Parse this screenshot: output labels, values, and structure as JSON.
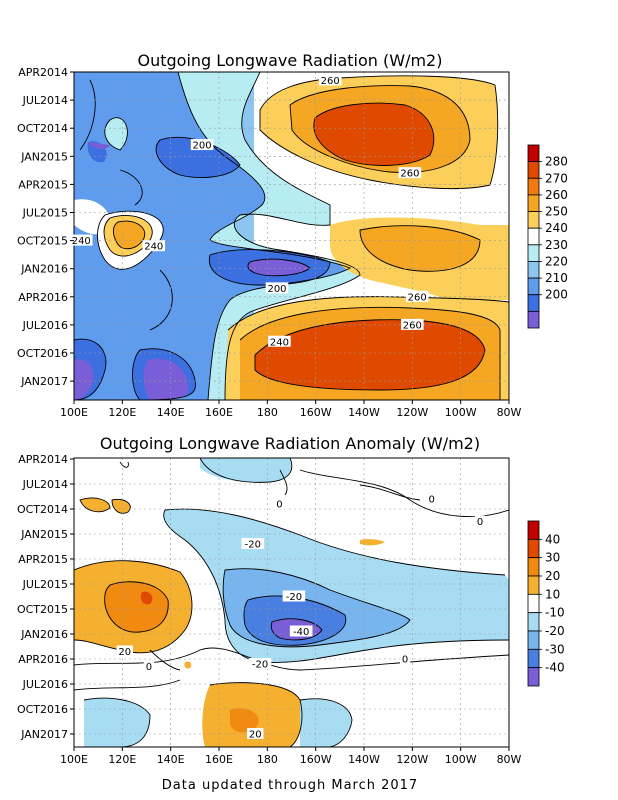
{
  "chart_data": [
    {
      "type": "heatmap",
      "title": "Outgoing Longwave Radiation (W/m2)",
      "x_ticks": [
        "100E",
        "120E",
        "140E",
        "160E",
        "180",
        "160W",
        "140W",
        "120W",
        "100W",
        "80W"
      ],
      "y_ticks": [
        "APR2014",
        "JUL2014",
        "OCT2014",
        "JAN2015",
        "APR2015",
        "JUL2015",
        "OCT2015",
        "JAN2016",
        "APR2016",
        "JUL2016",
        "OCT2016",
        "JAN2017"
      ],
      "contour_labels": [
        {
          "text": "260",
          "lon": -154,
          "t": 0.3
        },
        {
          "text": "200",
          "lon": 153,
          "t": 2.6
        },
        {
          "text": "260",
          "lon": -121,
          "t": 3.6
        },
        {
          "text": "240",
          "lon": 103,
          "t": 6.0
        },
        {
          "text": "240",
          "lon": 133,
          "t": 6.2
        },
        {
          "text": "200",
          "lon": -176,
          "t": 7.7
        },
        {
          "text": "260",
          "lon": -118,
          "t": 8.0
        },
        {
          "text": "260",
          "lon": -120,
          "t": 9.0
        },
        {
          "text": "240",
          "lon": -175,
          "t": 9.6
        }
      ],
      "colorbar": {
        "labels": [
          "280",
          "270",
          "260",
          "250",
          "240",
          "230",
          "220",
          "210",
          "200"
        ],
        "colors": [
          "#c00000",
          "#e04a00",
          "#f07a10",
          "#f5a623",
          "#fbcf5a",
          "#ffffff",
          "#b8ecf3",
          "#8cc5f0",
          "#5f9cee",
          "#3c6fe0",
          "#7a5ed8"
        ]
      }
    },
    {
      "type": "heatmap",
      "title": "Outgoing Longwave Radiation Anomaly (W/m2)",
      "x_ticks": [
        "100E",
        "120E",
        "140E",
        "160E",
        "180",
        "160W",
        "140W",
        "120W",
        "100W",
        "80W"
      ],
      "y_ticks": [
        "APR2014",
        "JUL2014",
        "OCT2014",
        "JAN2015",
        "APR2015",
        "JUL2015",
        "OCT2015",
        "JAN2016",
        "APR2016",
        "JUL2016",
        "OCT2016",
        "JAN2017"
      ],
      "contour_labels": [
        {
          "text": "0",
          "lon": -175,
          "t": 1.8
        },
        {
          "text": "0",
          "lon": -112,
          "t": 1.6
        },
        {
          "text": "0",
          "lon": -92,
          "t": 2.5
        },
        {
          "text": "-20",
          "lon": 174,
          "t": 3.4
        },
        {
          "text": "-20",
          "lon": -169,
          "t": 5.5
        },
        {
          "text": "-40",
          "lon": -166,
          "t": 6.9
        },
        {
          "text": "20",
          "lon": 121,
          "t": 7.7
        },
        {
          "text": "-20",
          "lon": 177,
          "t": 8.2
        },
        {
          "text": "0",
          "lon": 131,
          "t": 8.3
        },
        {
          "text": "0",
          "lon": -123,
          "t": 8.0
        },
        {
          "text": "20",
          "lon": 175,
          "t": 11.0
        }
      ],
      "colorbar": {
        "labels": [
          "40",
          "30",
          "20",
          "10",
          "-10",
          "-20",
          "-30",
          "-40"
        ],
        "colors": [
          "#c00000",
          "#e04a00",
          "#f08a10",
          "#f5b030",
          "#ffffff",
          "#a8dcf3",
          "#78b4ee",
          "#4a7fe2",
          "#7a5ed8"
        ]
      }
    }
  ],
  "footer": "Data updated through March 2017"
}
